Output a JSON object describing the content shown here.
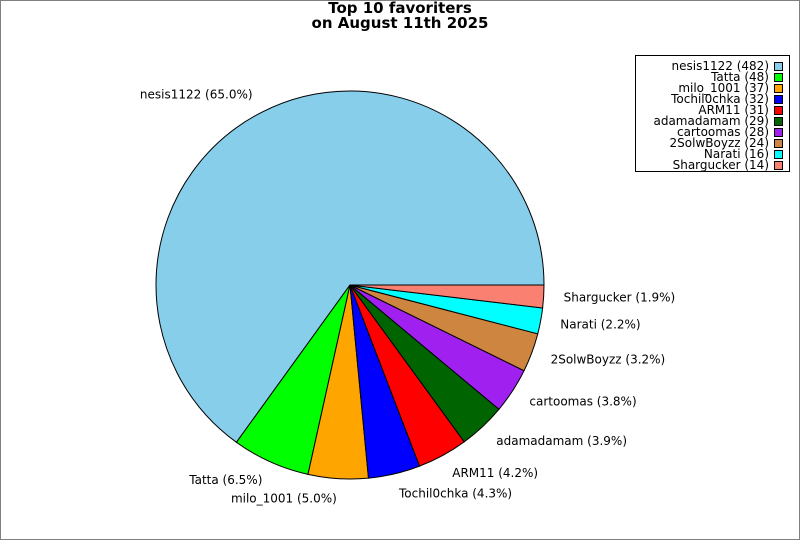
{
  "chart_data": {
    "type": "pie",
    "title": [
      "Top 10 favoriters",
      "on August 11th 2025"
    ],
    "categories": [
      "nesis1122",
      "Tatta",
      "milo_1001",
      "Tochil0chka",
      "ARM11",
      "adamadamam",
      "cartoomas",
      "2SolwBoyzz",
      "Narati",
      "Shargucker"
    ],
    "values": [
      482,
      48,
      37,
      32,
      31,
      29,
      28,
      24,
      16,
      14
    ],
    "colors": [
      "#87ceeb",
      "#00ff00",
      "#ffa500",
      "#0000ff",
      "#ff0000",
      "#006400",
      "#a020f0",
      "#cd853f",
      "#00ffff",
      "#fa8072"
    ],
    "slice_labels": [
      "nesis1122 (65.0%)",
      "Tatta (6.5%)",
      "milo_1001 (5.0%)",
      "Tochil0chka (4.3%)",
      "ARM11 (4.2%)",
      "adamadamam (3.9%)",
      "cartoomas (3.8%)",
      "2SolwBoyzz (3.2%)",
      "Narati (2.2%)",
      "Shargucker (1.9%)"
    ],
    "legend_entries": [
      "nesis1122 (482)",
      "Tatta (48)",
      "milo_1001 (37)",
      "Tochil0chka (32)",
      "ARM11 (31)",
      "adamadamam (29)",
      "cartoomas (28)",
      "2SolwBoyzz (24)",
      "Narati (16)",
      "Shargucker (14)"
    ],
    "legend_position": "top-right",
    "start_angle": "0 degrees (3 o'clock)",
    "direction": "counterclockwise"
  }
}
